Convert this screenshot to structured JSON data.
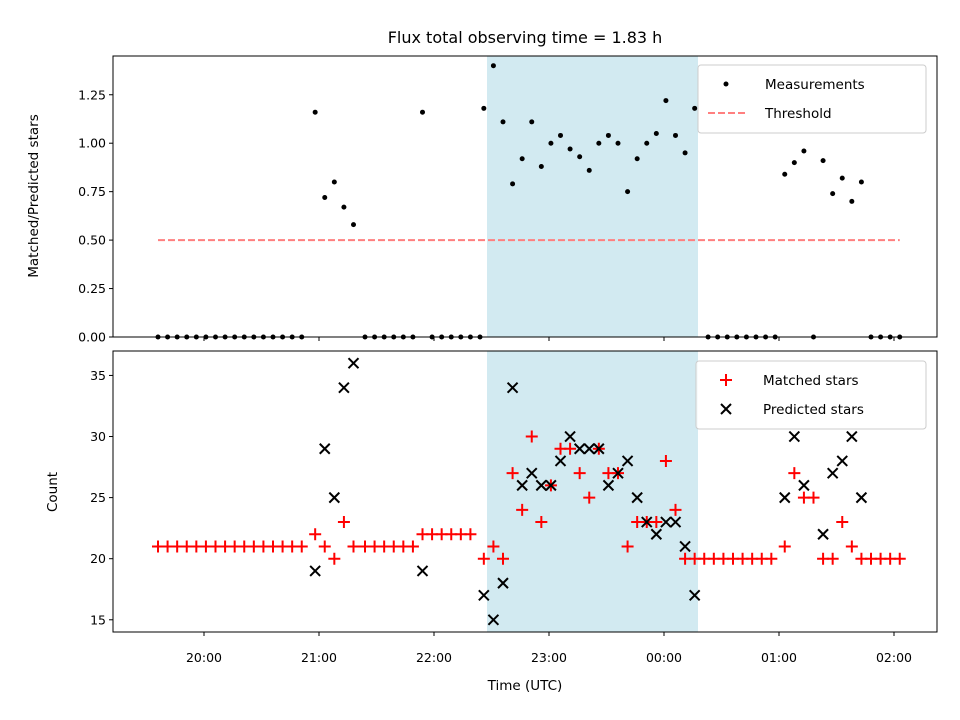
{
  "chart_data": [
    {
      "type": "scatter",
      "title": "Flux total observing time = 1.83 h",
      "xlabel": "",
      "ylabel": "Matched/Predicted stars",
      "ylim": [
        0,
        1.45
      ],
      "yticks": [
        "0.00",
        "0.25",
        "0.50",
        "0.75",
        "1.00",
        "1.25"
      ],
      "highlight": {
        "start": "22:25",
        "end": "00:18",
        "color": "#add8e6"
      },
      "legend_position": "top-right",
      "series": [
        {
          "name": "Measurements",
          "marker": "dot",
          "color": "#000000",
          "points": [
            [
              "19:36",
              0
            ],
            [
              "19:41",
              0
            ],
            [
              "19:46",
              0
            ],
            [
              "19:51",
              0
            ],
            [
              "19:56",
              0
            ],
            [
              "20:01",
              0
            ],
            [
              "20:06",
              0
            ],
            [
              "20:11",
              0
            ],
            [
              "20:16",
              0
            ],
            [
              "20:21",
              0
            ],
            [
              "20:26",
              0
            ],
            [
              "20:31",
              0
            ],
            [
              "20:36",
              0
            ],
            [
              "20:41",
              0
            ],
            [
              "20:46",
              0
            ],
            [
              "20:51",
              0
            ],
            [
              "20:58",
              1.16
            ],
            [
              "21:03",
              0.72
            ],
            [
              "21:08",
              0.8
            ],
            [
              "21:13",
              0.67
            ],
            [
              "21:18",
              0.58
            ],
            [
              "21:24",
              0
            ],
            [
              "21:29",
              0
            ],
            [
              "21:34",
              0
            ],
            [
              "21:39",
              0
            ],
            [
              "21:44",
              0
            ],
            [
              "21:49",
              0
            ],
            [
              "21:54",
              1.16
            ],
            [
              "21:59",
              0
            ],
            [
              "22:04",
              0
            ],
            [
              "22:09",
              0
            ],
            [
              "22:14",
              0
            ],
            [
              "22:19",
              0
            ],
            [
              "22:24",
              0
            ],
            [
              "22:26",
              1.18
            ],
            [
              "22:31",
              1.4
            ],
            [
              "22:36",
              1.11
            ],
            [
              "22:41",
              0.79
            ],
            [
              "22:46",
              0.92
            ],
            [
              "22:51",
              1.11
            ],
            [
              "22:56",
              0.88
            ],
            [
              "23:01",
              1.0
            ],
            [
              "23:06",
              1.04
            ],
            [
              "23:11",
              0.97
            ],
            [
              "23:16",
              0.93
            ],
            [
              "23:21",
              0.86
            ],
            [
              "23:26",
              1.0
            ],
            [
              "23:31",
              1.04
            ],
            [
              "23:36",
              1.0
            ],
            [
              "23:41",
              0.75
            ],
            [
              "23:46",
              0.92
            ],
            [
              "23:51",
              1.0
            ],
            [
              "23:56",
              1.05
            ],
            [
              "00:01",
              1.22
            ],
            [
              "00:06",
              1.04
            ],
            [
              "00:11",
              0.95
            ],
            [
              "00:16",
              1.18
            ],
            [
              "00:23",
              0
            ],
            [
              "00:28",
              0
            ],
            [
              "00:33",
              0
            ],
            [
              "00:38",
              0
            ],
            [
              "00:43",
              0
            ],
            [
              "00:48",
              0
            ],
            [
              "00:53",
              0
            ],
            [
              "00:58",
              0
            ],
            [
              "01:03",
              0.84
            ],
            [
              "01:08",
              0.9
            ],
            [
              "01:13",
              0.96
            ],
            [
              "01:18",
              0
            ],
            [
              "01:23",
              0.91
            ],
            [
              "01:28",
              0.74
            ],
            [
              "01:33",
              0.82
            ],
            [
              "01:38",
              0.7
            ],
            [
              "01:43",
              0.8
            ],
            [
              "01:48",
              0
            ],
            [
              "01:53",
              0
            ],
            [
              "01:58",
              0
            ],
            [
              "02:03",
              0
            ]
          ]
        },
        {
          "name": "Threshold",
          "marker": "dashed-line",
          "color": "#ff7f7f",
          "points": [
            [
              "19:36",
              0.5
            ],
            [
              "02:03",
              0.5
            ]
          ]
        }
      ]
    },
    {
      "type": "scatter",
      "xlabel": "Time (UTC)",
      "ylabel": "Count",
      "ylim": [
        14,
        37
      ],
      "yticks": [
        "15",
        "20",
        "25",
        "30",
        "35"
      ],
      "xticks": [
        "20:00",
        "21:00",
        "22:00",
        "23:00",
        "00:00",
        "01:00",
        "02:00"
      ],
      "highlight": {
        "start": "22:25",
        "end": "00:18",
        "color": "#add8e6"
      },
      "legend_position": "top-right",
      "series": [
        {
          "name": "Matched stars",
          "marker": "plus",
          "color": "#ff0000",
          "points": [
            [
              "19:36",
              21
            ],
            [
              "19:41",
              21
            ],
            [
              "19:46",
              21
            ],
            [
              "19:51",
              21
            ],
            [
              "19:56",
              21
            ],
            [
              "20:01",
              21
            ],
            [
              "20:06",
              21
            ],
            [
              "20:11",
              21
            ],
            [
              "20:16",
              21
            ],
            [
              "20:21",
              21
            ],
            [
              "20:26",
              21
            ],
            [
              "20:31",
              21
            ],
            [
              "20:36",
              21
            ],
            [
              "20:41",
              21
            ],
            [
              "20:46",
              21
            ],
            [
              "20:51",
              21
            ],
            [
              "20:58",
              22
            ],
            [
              "21:03",
              21
            ],
            [
              "21:08",
              20
            ],
            [
              "21:13",
              23
            ],
            [
              "21:18",
              21
            ],
            [
              "21:24",
              21
            ],
            [
              "21:29",
              21
            ],
            [
              "21:34",
              21
            ],
            [
              "21:39",
              21
            ],
            [
              "21:44",
              21
            ],
            [
              "21:49",
              21
            ],
            [
              "21:54",
              22
            ],
            [
              "21:59",
              22
            ],
            [
              "22:04",
              22
            ],
            [
              "22:09",
              22
            ],
            [
              "22:14",
              22
            ],
            [
              "22:19",
              22
            ],
            [
              "22:26",
              20
            ],
            [
              "22:31",
              21
            ],
            [
              "22:36",
              20
            ],
            [
              "22:41",
              27
            ],
            [
              "22:46",
              24
            ],
            [
              "22:51",
              30
            ],
            [
              "22:56",
              23
            ],
            [
              "23:01",
              26
            ],
            [
              "23:06",
              29
            ],
            [
              "23:11",
              29
            ],
            [
              "23:16",
              27
            ],
            [
              "23:21",
              25
            ],
            [
              "23:26",
              29
            ],
            [
              "23:31",
              27
            ],
            [
              "23:36",
              27
            ],
            [
              "23:41",
              21
            ],
            [
              "23:46",
              23
            ],
            [
              "23:51",
              23
            ],
            [
              "23:56",
              23
            ],
            [
              "00:01",
              28
            ],
            [
              "00:06",
              24
            ],
            [
              "00:11",
              20
            ],
            [
              "00:16",
              20
            ],
            [
              "00:21",
              20
            ],
            [
              "00:26",
              20
            ],
            [
              "00:31",
              20
            ],
            [
              "00:36",
              20
            ],
            [
              "00:41",
              20
            ],
            [
              "00:46",
              20
            ],
            [
              "00:51",
              20
            ],
            [
              "00:56",
              20
            ],
            [
              "01:03",
              21
            ],
            [
              "01:08",
              27
            ],
            [
              "01:13",
              25
            ],
            [
              "01:18",
              25
            ],
            [
              "01:23",
              20
            ],
            [
              "01:28",
              20
            ],
            [
              "01:33",
              23
            ],
            [
              "01:38",
              21
            ],
            [
              "01:43",
              20
            ],
            [
              "01:48",
              20
            ],
            [
              "01:53",
              20
            ],
            [
              "01:58",
              20
            ],
            [
              "02:03",
              20
            ]
          ]
        },
        {
          "name": "Predicted stars",
          "marker": "x",
          "color": "#000000",
          "points": [
            [
              "20:58",
              19
            ],
            [
              "21:03",
              29
            ],
            [
              "21:08",
              25
            ],
            [
              "21:13",
              34
            ],
            [
              "21:18",
              36
            ],
            [
              "21:54",
              19
            ],
            [
              "22:26",
              17
            ],
            [
              "22:31",
              15
            ],
            [
              "22:36",
              18
            ],
            [
              "22:41",
              34
            ],
            [
              "22:46",
              26
            ],
            [
              "22:51",
              27
            ],
            [
              "22:56",
              26
            ],
            [
              "23:01",
              26
            ],
            [
              "23:06",
              28
            ],
            [
              "23:11",
              30
            ],
            [
              "23:16",
              29
            ],
            [
              "23:21",
              29
            ],
            [
              "23:26",
              29
            ],
            [
              "23:31",
              26
            ],
            [
              "23:36",
              27
            ],
            [
              "23:41",
              28
            ],
            [
              "23:46",
              25
            ],
            [
              "23:51",
              23
            ],
            [
              "23:56",
              22
            ],
            [
              "00:01",
              23
            ],
            [
              "00:06",
              23
            ],
            [
              "00:11",
              21
            ],
            [
              "00:16",
              17
            ],
            [
              "01:03",
              25
            ],
            [
              "01:08",
              30
            ],
            [
              "01:13",
              26
            ],
            [
              "01:23",
              22
            ],
            [
              "01:28",
              27
            ],
            [
              "01:33",
              28
            ],
            [
              "01:38",
              30
            ],
            [
              "01:43",
              25
            ]
          ]
        }
      ]
    }
  ]
}
